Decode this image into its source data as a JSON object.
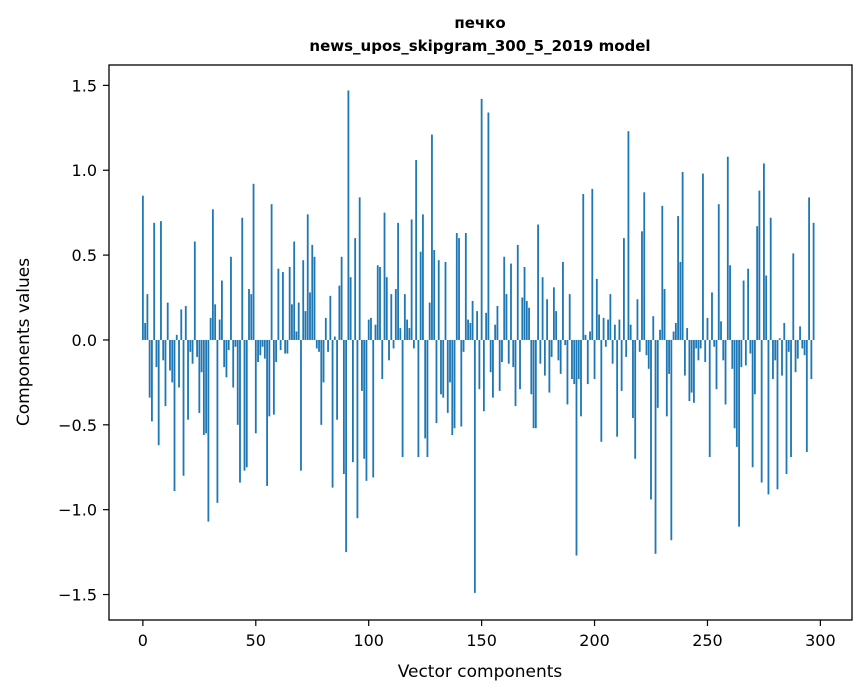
{
  "chart_data": {
    "type": "bar",
    "title": "печко",
    "subtitle": "news_upos_skipgram_300_5_2019 model",
    "xlabel": "Vector components",
    "ylabel": "Components values",
    "xlim": [
      -15,
      314
    ],
    "ylim": [
      -1.65,
      1.62
    ],
    "xticks": [
      0,
      50,
      100,
      150,
      200,
      250,
      300
    ],
    "yticks": [
      -1.5,
      -1.0,
      -0.5,
      0.0,
      0.5,
      1.0,
      1.5
    ],
    "xtick_labels": [
      "0",
      "50",
      "100",
      "150",
      "200",
      "250",
      "300"
    ],
    "ytick_labels": [
      "−1.5",
      "−1.0",
      "−0.5",
      "0.0",
      "0.5",
      "1.0",
      "1.5"
    ],
    "bar_color": "#1f77b4",
    "grid": false,
    "values": [
      0.85,
      0.1,
      0.27,
      -0.34,
      -0.48,
      0.69,
      -0.16,
      -0.62,
      0.7,
      -0.12,
      -0.39,
      0.22,
      -0.18,
      -0.25,
      -0.89,
      0.03,
      -0.28,
      0.18,
      -0.8,
      0.2,
      -0.47,
      -0.07,
      -0.14,
      0.58,
      -0.1,
      -0.43,
      -0.19,
      -0.56,
      -0.55,
      -1.07,
      0.13,
      0.77,
      0.21,
      -0.96,
      0.12,
      0.35,
      -0.16,
      -0.22,
      -0.06,
      0.49,
      -0.28,
      -0.04,
      -0.5,
      -0.84,
      0.72,
      -0.77,
      -0.75,
      0.3,
      0.27,
      0.92,
      -0.55,
      -0.13,
      -0.09,
      -0.04,
      -0.11,
      -0.86,
      -0.45,
      0.8,
      -0.44,
      -0.13,
      0.42,
      -0.06,
      0.4,
      -0.08,
      -0.08,
      0.43,
      0.21,
      0.58,
      0.05,
      0.22,
      -0.77,
      0.47,
      0.17,
      0.74,
      0.28,
      0.56,
      0.49,
      -0.05,
      -0.07,
      -0.5,
      -0.25,
      0.13,
      -0.07,
      0.26,
      -0.87,
      0.02,
      -0.47,
      0.32,
      0.49,
      -0.79,
      -1.25,
      1.47,
      0.37,
      -0.72,
      0.6,
      -1.05,
      0.84,
      -0.3,
      -0.7,
      -0.83,
      0.12,
      0.13,
      -0.81,
      0.09,
      0.44,
      0.43,
      -0.23,
      0.75,
      0.37,
      -0.12,
      0.27,
      -0.05,
      0.3,
      0.69,
      0.07,
      -0.69,
      0.27,
      0.12,
      0.07,
      0.71,
      -0.05,
      1.06,
      -0.69,
      0.52,
      0.74,
      -0.58,
      -0.69,
      0.22,
      1.21,
      0.53,
      -0.49,
      0.47,
      -0.32,
      -0.34,
      0.46,
      -0.43,
      -0.25,
      -0.56,
      -0.52,
      0.63,
      0.6,
      -0.51,
      -0.07,
      0.63,
      0.12,
      0.1,
      0.23,
      -1.49,
      0.17,
      -0.29,
      1.42,
      -0.42,
      0.16,
      1.34,
      -0.19,
      -0.34,
      0.09,
      0.2,
      -0.3,
      -0.13,
      0.49,
      0.27,
      -0.14,
      0.45,
      -0.16,
      -0.39,
      0.56,
      -0.29,
      0.25,
      0.43,
      0.23,
      0.19,
      -0.32,
      -0.52,
      -0.52,
      0.68,
      -0.14,
      0.37,
      -0.21,
      0.24,
      -0.31,
      -0.1,
      0.31,
      0.17,
      -0.12,
      -0.2,
      0.46,
      -0.03,
      -0.38,
      0.27,
      -0.23,
      -0.26,
      -1.27,
      -0.23,
      -0.45,
      0.86,
      0.03,
      -0.26,
      0.05,
      0.89,
      -0.23,
      0.36,
      0.15,
      -0.6,
      0.13,
      -0.04,
      0.12,
      0.27,
      -0.14,
      0.09,
      -0.57,
      0.12,
      -0.3,
      0.6,
      -0.1,
      1.23,
      0.09,
      -0.46,
      -0.7,
      0.24,
      -0.07,
      0.64,
      0.87,
      -0.09,
      -0.17,
      -0.94,
      0.14,
      -1.26,
      -0.4,
      0.06,
      0.79,
      0.3,
      -0.45,
      -0.2,
      -1.18,
      0.05,
      0.1,
      0.73,
      0.46,
      0.99,
      -0.21,
      0.07,
      -0.36,
      -0.31,
      -0.37,
      -0.05,
      -0.12,
      -0.05,
      0.98,
      -0.13,
      0.13,
      -0.69,
      0.28,
      -0.04,
      -0.29,
      0.8,
      0.11,
      -0.12,
      -0.38,
      1.08,
      0.44,
      -0.17,
      -0.52,
      -0.63,
      -1.1,
      -0.16,
      0.35,
      -0.15,
      0.42,
      -0.08,
      -0.75,
      -0.32,
      0.67,
      0.88,
      -0.84,
      1.04,
      0.38,
      -0.91,
      0.72,
      -0.23,
      -0.12,
      -0.88,
      0.01,
      -0.21,
      0.1,
      -0.79,
      -0.07,
      -0.69,
      0.51,
      -0.19,
      -0.11,
      0.08,
      -0.05,
      -0.09,
      -0.66,
      0.84,
      -0.23,
      0.69
    ]
  }
}
